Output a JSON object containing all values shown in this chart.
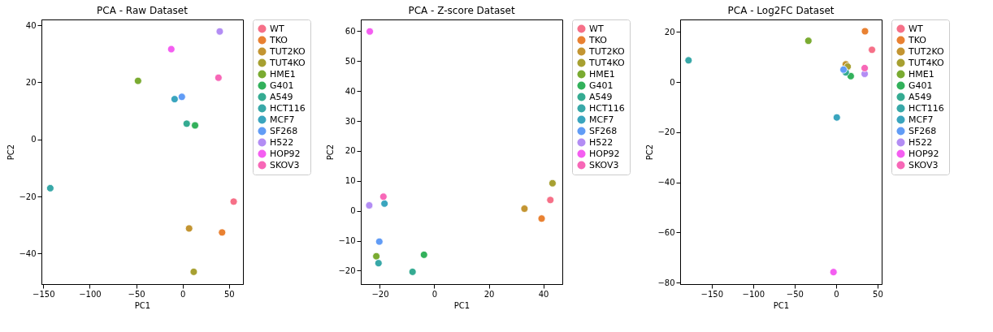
{
  "chart_data": [
    {
      "type": "scatter",
      "title": "PCA - Raw Dataset",
      "xlabel": "PC1",
      "ylabel": "PC2",
      "xlim": [
        -152,
        65
      ],
      "ylim": [
        -50.7,
        42
      ],
      "xticks": [
        -150,
        -100,
        -50,
        0,
        50
      ],
      "yticks": [
        -40,
        -20,
        0,
        20,
        40
      ],
      "grid": false,
      "legend": "top right",
      "marker": "circle",
      "series": [
        {
          "name": "WT",
          "color": "#f67088",
          "x": [
            55
          ],
          "values": [
            -21.8
          ]
        },
        {
          "name": "TKO",
          "color": "#e98132",
          "x": [
            42.5
          ],
          "values": [
            -32.6
          ]
        },
        {
          "name": "TUT2KO",
          "color": "#c39532",
          "x": [
            7
          ],
          "values": [
            -31.2
          ]
        },
        {
          "name": "TUT4KO",
          "color": "#a7a031",
          "x": [
            12
          ],
          "values": [
            -46.4
          ]
        },
        {
          "name": "HME1",
          "color": "#7aab31",
          "x": [
            -48
          ],
          "values": [
            20.5
          ]
        },
        {
          "name": "G401",
          "color": "#32b15b",
          "x": [
            13.4
          ],
          "values": [
            4.9
          ]
        },
        {
          "name": "A549",
          "color": "#35ab92",
          "x": [
            4.4
          ],
          "values": [
            5.5
          ]
        },
        {
          "name": "HCT116",
          "color": "#38a8a8",
          "x": [
            -142.5
          ],
          "values": [
            -17.1
          ]
        },
        {
          "name": "MCF7",
          "color": "#3aa5be",
          "x": [
            -8.6
          ],
          "values": [
            14.1
          ]
        },
        {
          "name": "SF268",
          "color": "#619cf6",
          "x": [
            -0.8
          ],
          "values": [
            14.9
          ]
        },
        {
          "name": "H522",
          "color": "#b38df4",
          "x": [
            40
          ],
          "values": [
            37.8
          ]
        },
        {
          "name": "HOP92",
          "color": "#f45ef1",
          "x": [
            -12.2
          ],
          "values": [
            31.6
          ]
        },
        {
          "name": "SKOV3",
          "color": "#f767b7",
          "x": [
            38.6
          ],
          "values": [
            21.6
          ]
        }
      ]
    },
    {
      "type": "scatter",
      "title": "PCA - Z-score Dataset",
      "xlabel": "PC1",
      "ylabel": "PC2",
      "xlim": [
        -27,
        47
      ],
      "ylim": [
        -24.5,
        63.9
      ],
      "xticks": [
        -20,
        0,
        20,
        40
      ],
      "yticks": [
        -20,
        -10,
        0,
        10,
        20,
        30,
        40,
        50,
        60
      ],
      "grid": false,
      "legend": "top right",
      "marker": "circle",
      "series": [
        {
          "name": "WT",
          "color": "#f67088",
          "x": [
            42.6
          ],
          "values": [
            3.6
          ]
        },
        {
          "name": "TKO",
          "color": "#e98132",
          "x": [
            39.4
          ],
          "values": [
            -2.6
          ]
        },
        {
          "name": "TUT2KO",
          "color": "#c39532",
          "x": [
            33.1
          ],
          "values": [
            0.7
          ]
        },
        {
          "name": "TUT4KO",
          "color": "#a7a031",
          "x": [
            43.4
          ],
          "values": [
            9.2
          ]
        },
        {
          "name": "HME1",
          "color": "#7aab31",
          "x": [
            -21.3
          ],
          "values": [
            -15.2
          ]
        },
        {
          "name": "G401",
          "color": "#32b15b",
          "x": [
            -3.8
          ],
          "values": [
            -14.7
          ]
        },
        {
          "name": "A549",
          "color": "#35ab92",
          "x": [
            -8.0
          ],
          "values": [
            -20.4
          ]
        },
        {
          "name": "HCT116",
          "color": "#38a8a8",
          "x": [
            -20.5
          ],
          "values": [
            -17.5
          ]
        },
        {
          "name": "MCF7",
          "color": "#3aa5be",
          "x": [
            -18.3
          ],
          "values": [
            2.4
          ]
        },
        {
          "name": "SF268",
          "color": "#619cf6",
          "x": [
            -20.2
          ],
          "values": [
            -10.3
          ]
        },
        {
          "name": "H522",
          "color": "#b38df4",
          "x": [
            -23.9
          ],
          "values": [
            1.8
          ]
        },
        {
          "name": "HOP92",
          "color": "#f45ef1",
          "x": [
            -23.7
          ],
          "values": [
            59.9
          ]
        },
        {
          "name": "SKOV3",
          "color": "#f767b7",
          "x": [
            -18.7
          ],
          "values": [
            4.7
          ]
        }
      ]
    },
    {
      "type": "scatter",
      "title": "PCA - Log2FC Dataset",
      "xlabel": "PC1",
      "ylabel": "PC2",
      "xlim": [
        -188,
        55
      ],
      "ylim": [
        -80.6,
        25
      ],
      "xticks": [
        -150,
        -100,
        -50,
        0,
        50
      ],
      "yticks": [
        -80,
        -60,
        -40,
        -20,
        0,
        20
      ],
      "grid": false,
      "legend": "top right",
      "marker": "circle",
      "series": [
        {
          "name": "WT",
          "color": "#f67088",
          "x": [
            43.3
          ],
          "values": [
            12.9
          ]
        },
        {
          "name": "TKO",
          "color": "#e98132",
          "x": [
            34.9
          ],
          "values": [
            20.3
          ]
        },
        {
          "name": "TUT2KO",
          "color": "#c39532",
          "x": [
            11.7
          ],
          "values": [
            7.1
          ]
        },
        {
          "name": "TUT4KO",
          "color": "#a7a031",
          "x": [
            14
          ],
          "values": [
            6.2
          ]
        },
        {
          "name": "HME1",
          "color": "#7aab31",
          "x": [
            -33.4
          ],
          "values": [
            16.5
          ]
        },
        {
          "name": "G401",
          "color": "#32b15b",
          "x": [
            17.7
          ],
          "values": [
            2.4
          ]
        },
        {
          "name": "A549",
          "color": "#35ab92",
          "x": [
            11.7
          ],
          "values": [
            3.9
          ]
        },
        {
          "name": "HCT116",
          "color": "#38a8a8",
          "x": [
            -177.9
          ],
          "values": [
            8.7
          ]
        },
        {
          "name": "MCF7",
          "color": "#3aa5be",
          "x": [
            0.9
          ],
          "values": [
            -14.1
          ]
        },
        {
          "name": "SF268",
          "color": "#619cf6",
          "x": [
            9
          ],
          "values": [
            5.0
          ]
        },
        {
          "name": "H522",
          "color": "#b38df4",
          "x": [
            34.5
          ],
          "values": [
            3.3
          ]
        },
        {
          "name": "HOP92",
          "color": "#f45ef1",
          "x": [
            -3.1
          ],
          "values": [
            -75.8
          ]
        },
        {
          "name": "SKOV3",
          "color": "#f767b7",
          "x": [
            34.5
          ],
          "values": [
            5.6
          ]
        }
      ]
    }
  ]
}
